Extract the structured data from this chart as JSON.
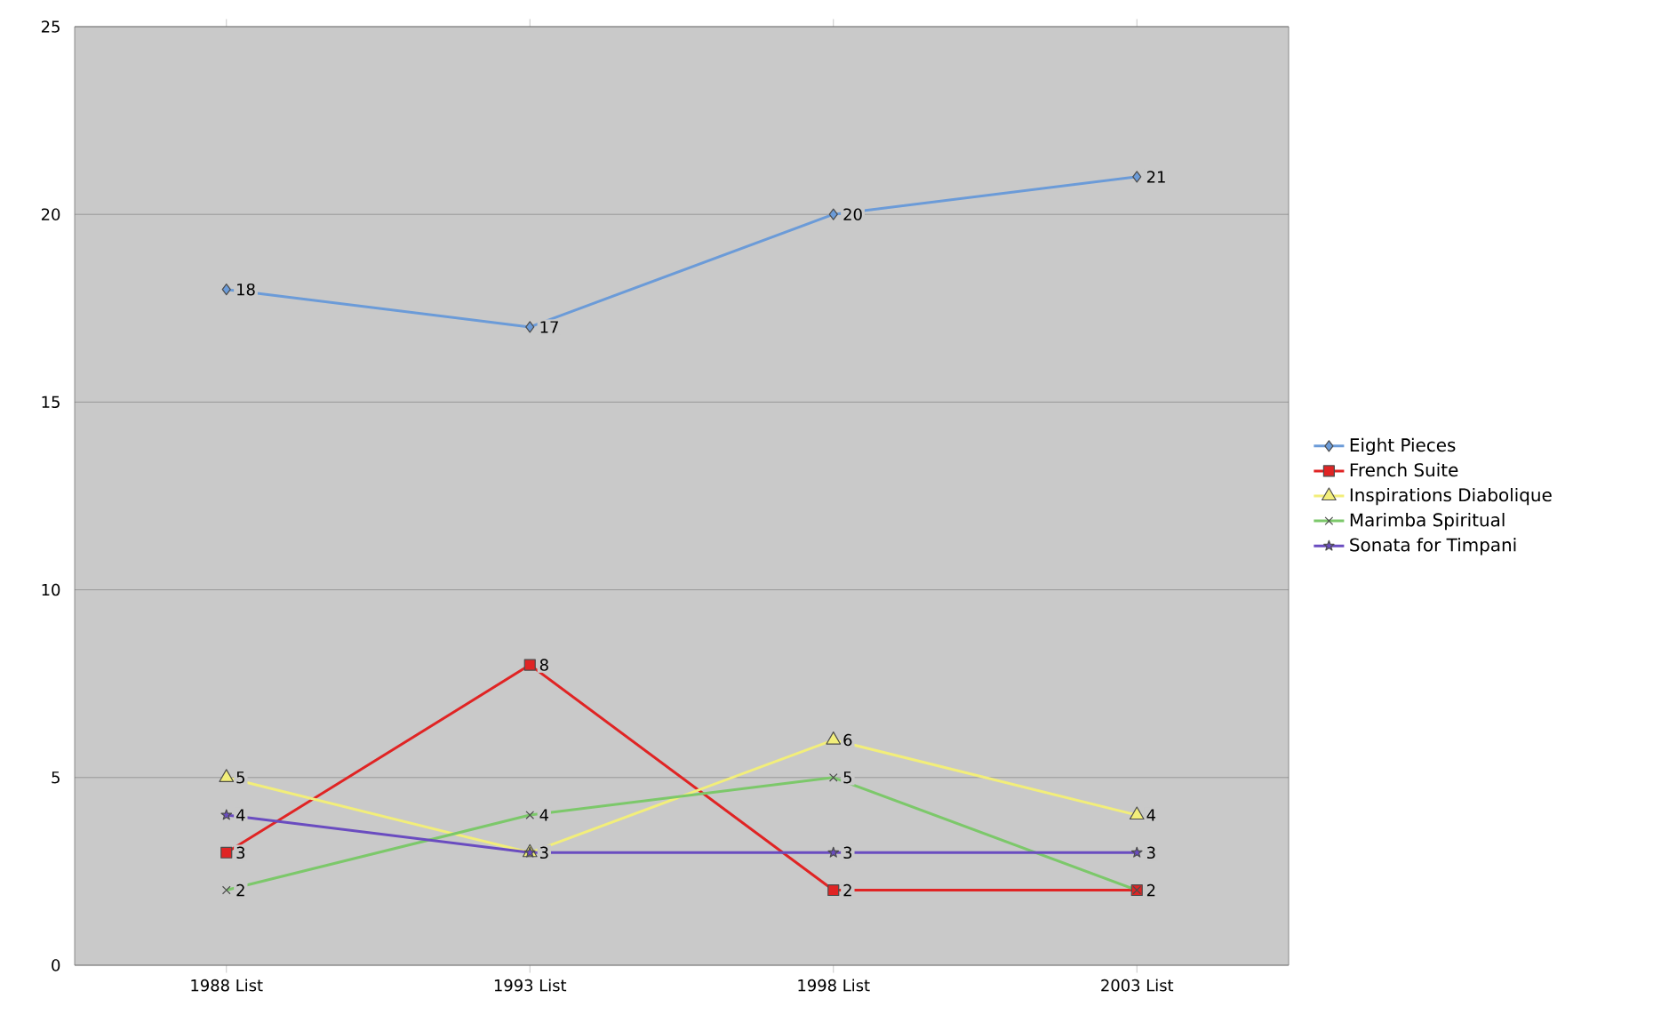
{
  "chart_data": {
    "type": "line",
    "categories": [
      "1988 List",
      "1993 List",
      "1998 List",
      "2003 List"
    ],
    "series": [
      {
        "name": "Eight Pieces",
        "color": "#6b9bd8",
        "marker": "diamond",
        "values": [
          18,
          17,
          20,
          21
        ],
        "value_labels": [
          "18",
          "17",
          "20",
          "21"
        ]
      },
      {
        "name": "French Suite",
        "color": "#e02424",
        "marker": "square",
        "values": [
          3,
          8,
          2,
          2
        ],
        "value_labels": [
          "3",
          "8",
          "2",
          "2"
        ]
      },
      {
        "name": "Inspirations Diabolique",
        "color": "#f2ee7a",
        "marker": "triangle",
        "values": [
          5,
          3,
          6,
          4
        ],
        "value_labels": [
          "5",
          null,
          "6",
          "4"
        ]
      },
      {
        "name": "Marimba Spiritual",
        "color": "#7cc86a",
        "marker": "cross",
        "values": [
          2,
          4,
          5,
          2
        ],
        "value_labels": [
          "2",
          "4",
          "5",
          null
        ]
      },
      {
        "name": "Sonata for Timpani",
        "color": "#6a4cc0",
        "marker": "star",
        "values": [
          4,
          3,
          3,
          3
        ],
        "value_labels": [
          "4",
          "3",
          "3",
          "3"
        ]
      }
    ],
    "ylim": [
      0,
      25
    ],
    "yticks": [
      0,
      5,
      10,
      15,
      20,
      25
    ],
    "grid": "y",
    "legend": "right",
    "line_style": "solid"
  }
}
